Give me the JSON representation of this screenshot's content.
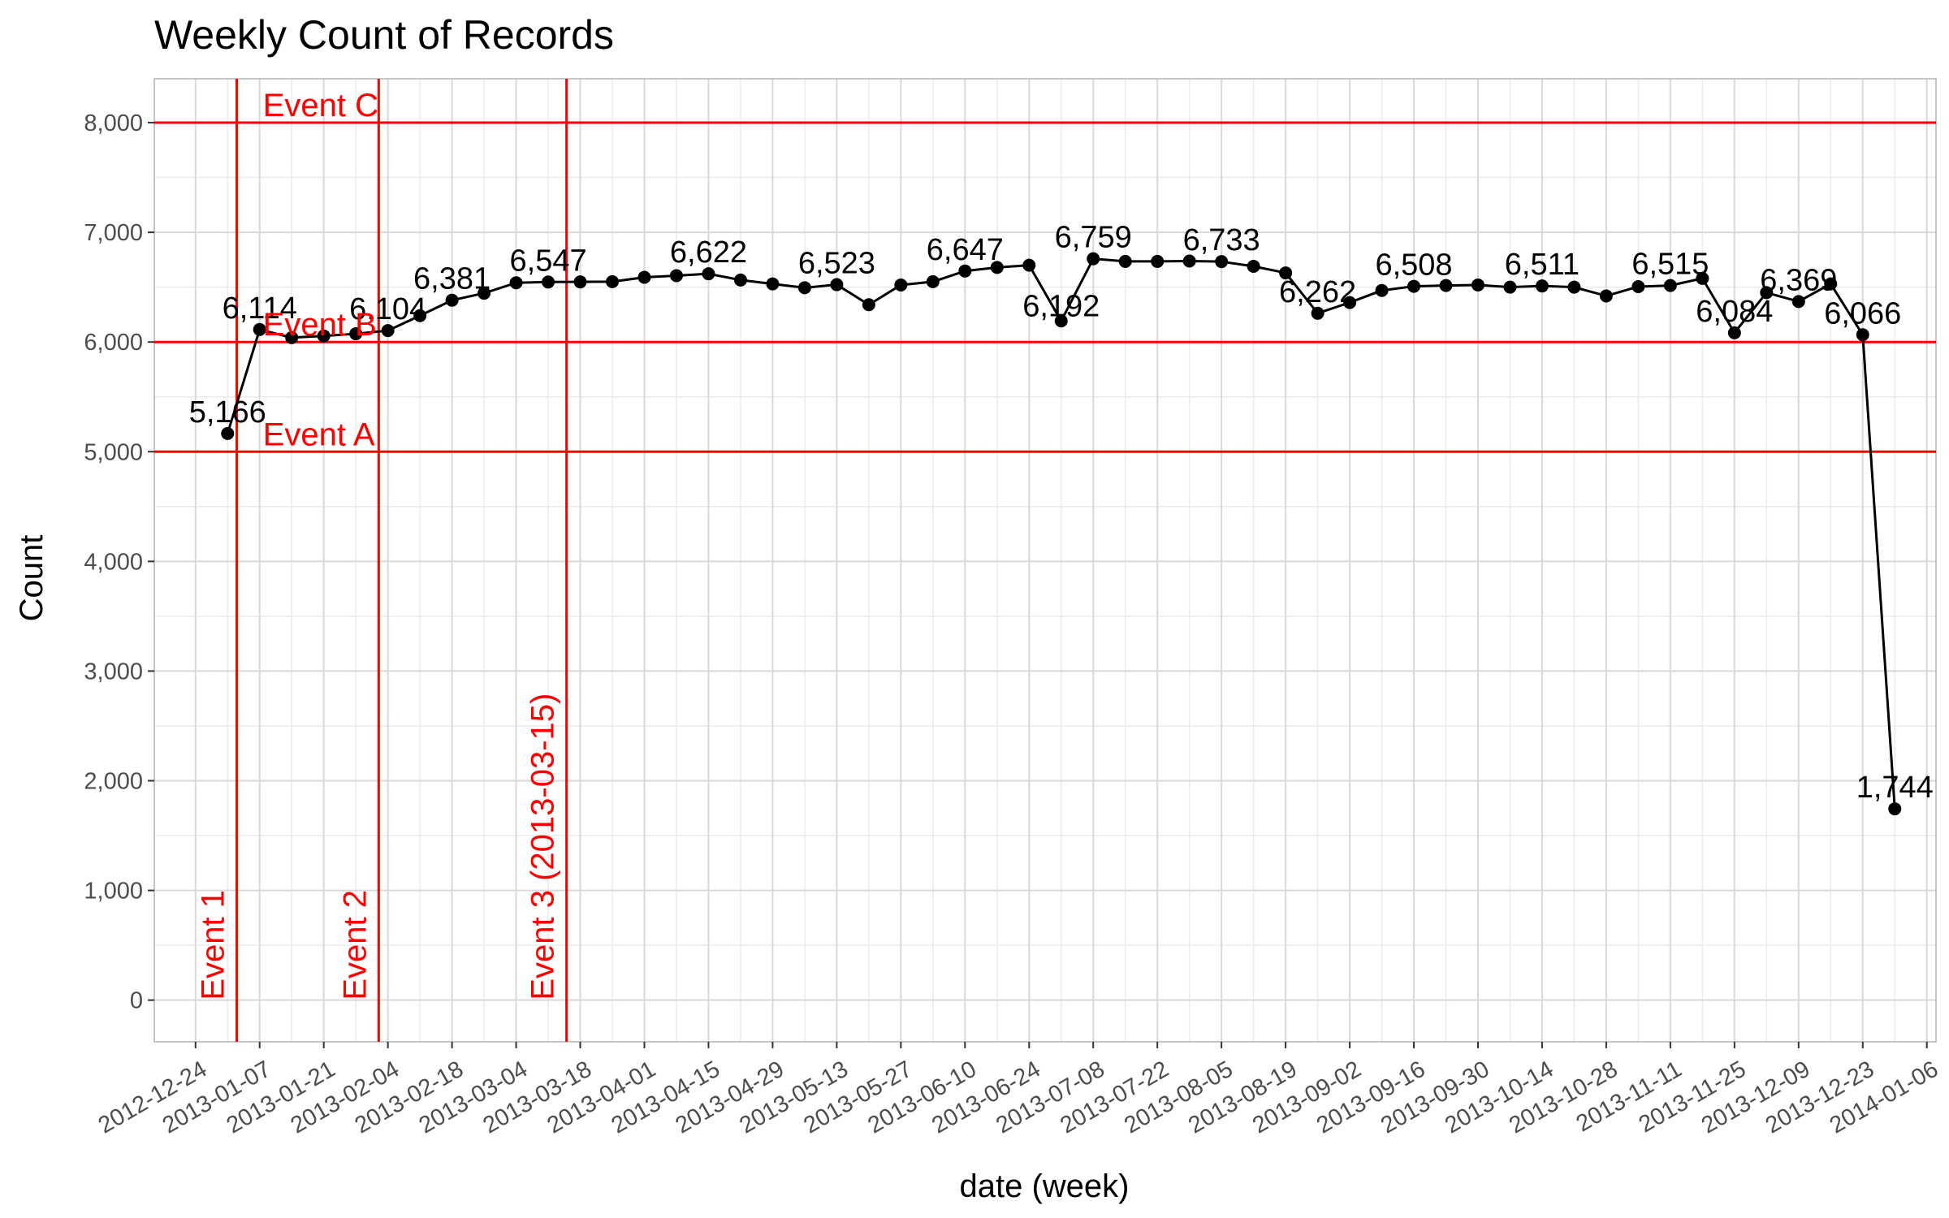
{
  "chart_data": {
    "type": "line",
    "title": "Weekly Count of Records",
    "xlabel": "date (week)",
    "ylabel": "Count",
    "x_tick_labels": [
      "2012-12-24",
      "2013-01-07",
      "2013-01-21",
      "2013-02-04",
      "2013-02-18",
      "2013-03-04",
      "2013-03-18",
      "2013-04-01",
      "2013-04-15",
      "2013-04-29",
      "2013-05-13",
      "2013-05-27",
      "2013-06-10",
      "2013-06-24",
      "2013-07-08",
      "2013-07-22",
      "2013-08-05",
      "2013-08-19",
      "2013-09-02",
      "2013-09-16",
      "2013-09-30",
      "2013-10-14",
      "2013-10-28",
      "2013-11-11",
      "2013-11-25",
      "2013-12-09",
      "2013-12-23",
      "2014-01-06"
    ],
    "y_ticks": [
      0,
      1000,
      2000,
      3000,
      4000,
      5000,
      6000,
      7000,
      8000
    ],
    "y_tick_labels": [
      "0",
      "1,000",
      "2,000",
      "3,000",
      "4,000",
      "5,000",
      "6,000",
      "7,000",
      "8,000"
    ],
    "ylim": [
      -380,
      8400
    ],
    "xlim": [
      "2012-12-15",
      "2014-01-08"
    ],
    "grid": true,
    "points": [
      {
        "x": "2012-12-31",
        "y": 5166,
        "label": "5,166"
      },
      {
        "x": "2013-01-07",
        "y": 6114,
        "label": "6,114"
      },
      {
        "x": "2013-01-14",
        "y": 6040,
        "label": ""
      },
      {
        "x": "2013-01-21",
        "y": 6055,
        "label": ""
      },
      {
        "x": "2013-01-28",
        "y": 6075,
        "label": ""
      },
      {
        "x": "2013-02-04",
        "y": 6104,
        "label": "6,104"
      },
      {
        "x": "2013-02-11",
        "y": 6240,
        "label": ""
      },
      {
        "x": "2013-02-18",
        "y": 6381,
        "label": "6,381"
      },
      {
        "x": "2013-02-25",
        "y": 6445,
        "label": ""
      },
      {
        "x": "2013-03-04",
        "y": 6540,
        "label": ""
      },
      {
        "x": "2013-03-11",
        "y": 6547,
        "label": "6,547"
      },
      {
        "x": "2013-03-18",
        "y": 6548,
        "label": ""
      },
      {
        "x": "2013-03-25",
        "y": 6550,
        "label": ""
      },
      {
        "x": "2013-04-01",
        "y": 6590,
        "label": ""
      },
      {
        "x": "2013-04-08",
        "y": 6605,
        "label": ""
      },
      {
        "x": "2013-04-15",
        "y": 6622,
        "label": "6,622"
      },
      {
        "x": "2013-04-22",
        "y": 6565,
        "label": ""
      },
      {
        "x": "2013-04-29",
        "y": 6530,
        "label": ""
      },
      {
        "x": "2013-05-06",
        "y": 6495,
        "label": ""
      },
      {
        "x": "2013-05-13",
        "y": 6523,
        "label": "6,523"
      },
      {
        "x": "2013-05-20",
        "y": 6340,
        "label": ""
      },
      {
        "x": "2013-05-27",
        "y": 6520,
        "label": ""
      },
      {
        "x": "2013-06-03",
        "y": 6550,
        "label": ""
      },
      {
        "x": "2013-06-10",
        "y": 6647,
        "label": "6,647"
      },
      {
        "x": "2013-06-17",
        "y": 6680,
        "label": ""
      },
      {
        "x": "2013-06-24",
        "y": 6700,
        "label": ""
      },
      {
        "x": "2013-07-01",
        "y": 6192,
        "label": "6,192"
      },
      {
        "x": "2013-07-08",
        "y": 6759,
        "label": "6,759"
      },
      {
        "x": "2013-07-15",
        "y": 6735,
        "label": ""
      },
      {
        "x": "2013-07-22",
        "y": 6735,
        "label": ""
      },
      {
        "x": "2013-07-29",
        "y": 6738,
        "label": ""
      },
      {
        "x": "2013-08-05",
        "y": 6733,
        "label": "6,733"
      },
      {
        "x": "2013-08-12",
        "y": 6690,
        "label": ""
      },
      {
        "x": "2013-08-19",
        "y": 6630,
        "label": ""
      },
      {
        "x": "2013-08-26",
        "y": 6262,
        "label": "6,262"
      },
      {
        "x": "2013-09-02",
        "y": 6360,
        "label": ""
      },
      {
        "x": "2013-09-09",
        "y": 6470,
        "label": ""
      },
      {
        "x": "2013-09-16",
        "y": 6508,
        "label": "6,508"
      },
      {
        "x": "2013-09-23",
        "y": 6515,
        "label": ""
      },
      {
        "x": "2013-09-30",
        "y": 6520,
        "label": ""
      },
      {
        "x": "2013-10-07",
        "y": 6500,
        "label": ""
      },
      {
        "x": "2013-10-14",
        "y": 6511,
        "label": "6,511"
      },
      {
        "x": "2013-10-21",
        "y": 6500,
        "label": ""
      },
      {
        "x": "2013-10-28",
        "y": 6420,
        "label": ""
      },
      {
        "x": "2013-11-04",
        "y": 6505,
        "label": ""
      },
      {
        "x": "2013-11-11",
        "y": 6515,
        "label": "6,515"
      },
      {
        "x": "2013-11-18",
        "y": 6580,
        "label": ""
      },
      {
        "x": "2013-11-25",
        "y": 6084,
        "label": "6,084"
      },
      {
        "x": "2013-12-02",
        "y": 6450,
        "label": ""
      },
      {
        "x": "2013-12-09",
        "y": 6369,
        "label": "6,369"
      },
      {
        "x": "2013-12-16",
        "y": 6530,
        "label": ""
      },
      {
        "x": "2013-12-23",
        "y": 6066,
        "label": "6,066"
      },
      {
        "x": "2013-12-30",
        "y": 1744,
        "label": "1,744"
      }
    ],
    "hlines": [
      {
        "y": 8000,
        "label": "Event C",
        "label_x": "2013-01-07"
      },
      {
        "y": 6000,
        "label": "Event B",
        "label_x": "2013-01-07"
      },
      {
        "y": 5000,
        "label": "Event A",
        "label_x": "2013-01-07"
      }
    ],
    "vlines": [
      {
        "x": "2013-01-02",
        "label": "Event 1"
      },
      {
        "x": "2013-02-02",
        "label": "Event 2"
      },
      {
        "x": "2013-03-15",
        "label": "Event 3 (2013-03-15)"
      }
    ],
    "colors": {
      "series": "#000000",
      "reference": "#ff0000",
      "grid_major": "#d9d9d9",
      "grid_minor": "#ebebeb",
      "panel_border": "#b3b3b3"
    }
  }
}
